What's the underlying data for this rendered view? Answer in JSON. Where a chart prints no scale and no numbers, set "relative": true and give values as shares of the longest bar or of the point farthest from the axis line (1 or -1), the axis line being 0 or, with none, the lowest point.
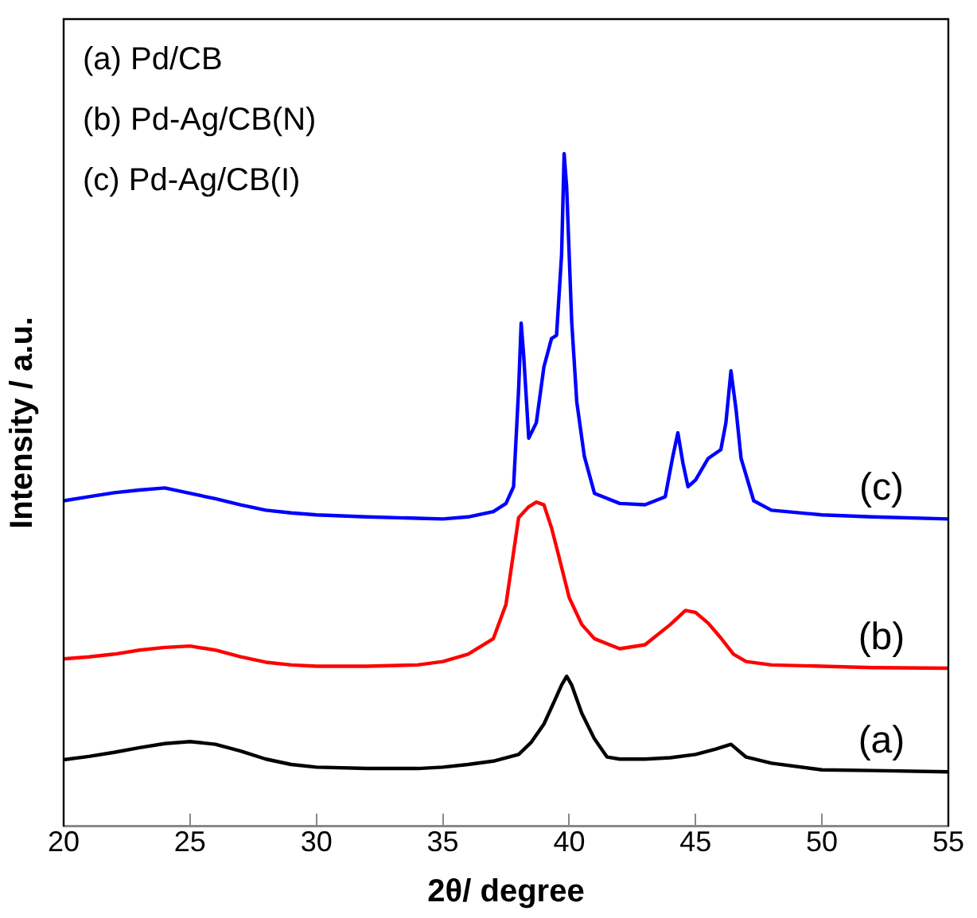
{
  "chart_data": {
    "type": "line",
    "xlabel": "2θ/ degree",
    "ylabel": "Intensity / a.u.",
    "relative": true,
    "xlim": [
      20,
      55
    ],
    "xticks": [
      20,
      25,
      30,
      35,
      40,
      45,
      50,
      55
    ],
    "grid": false,
    "legend": false,
    "marker": "none",
    "line_style": "solid",
    "series": [
      {
        "name": "(a)",
        "color": "#000000",
        "x": [
          20,
          21,
          22,
          23,
          24,
          25,
          26,
          27,
          28,
          29,
          30,
          32,
          34,
          35,
          36,
          37,
          38,
          38.5,
          39,
          39.4,
          39.7,
          39.9,
          40.1,
          40.5,
          41,
          41.5,
          42,
          43,
          44,
          45,
          45.8,
          46.4,
          47,
          48,
          50,
          52,
          55
        ],
        "values": [
          0.099,
          0.104,
          0.11,
          0.117,
          0.123,
          0.126,
          0.122,
          0.112,
          0.1,
          0.092,
          0.088,
          0.086,
          0.086,
          0.088,
          0.092,
          0.097,
          0.107,
          0.125,
          0.152,
          0.185,
          0.21,
          0.223,
          0.21,
          0.168,
          0.13,
          0.103,
          0.1,
          0.1,
          0.102,
          0.107,
          0.115,
          0.122,
          0.103,
          0.094,
          0.084,
          0.083,
          0.081
        ]
      },
      {
        "name": "(b)",
        "color": "#ff0000",
        "x": [
          20,
          21,
          22,
          23,
          24,
          25,
          26,
          27,
          28,
          29,
          30,
          32,
          34,
          35,
          36,
          37,
          37.5,
          38,
          38.4,
          38.7,
          39,
          39.3,
          39.6,
          40,
          40.5,
          41,
          42,
          43,
          44,
          44.6,
          45,
          45.5,
          46,
          46.5,
          47,
          48,
          50,
          52,
          55
        ],
        "values": [
          0.249,
          0.252,
          0.256,
          0.262,
          0.266,
          0.268,
          0.262,
          0.252,
          0.244,
          0.24,
          0.238,
          0.238,
          0.24,
          0.245,
          0.256,
          0.279,
          0.33,
          0.459,
          0.475,
          0.482,
          0.478,
          0.444,
          0.4,
          0.34,
          0.3,
          0.279,
          0.264,
          0.27,
          0.3,
          0.321,
          0.318,
          0.302,
          0.28,
          0.256,
          0.245,
          0.24,
          0.238,
          0.236,
          0.235
        ]
      },
      {
        "name": "(c)",
        "color": "#0000ff",
        "x": [
          20,
          21,
          22,
          23,
          24,
          25,
          26,
          27,
          28,
          29,
          30,
          32,
          34,
          35,
          36,
          37,
          37.5,
          37.8,
          38,
          38.1,
          38.2,
          38.4,
          38.7,
          39,
          39.3,
          39.5,
          39.7,
          39.8,
          39.9,
          40.1,
          40.3,
          40.6,
          41,
          42,
          43,
          43.8,
          44.1,
          44.3,
          44.5,
          44.7,
          45,
          45.5,
          46,
          46.2,
          46.4,
          46.6,
          46.8,
          47.3,
          48,
          50,
          52,
          55
        ],
        "values": [
          0.484,
          0.49,
          0.496,
          0.5,
          0.503,
          0.495,
          0.487,
          0.478,
          0.47,
          0.466,
          0.463,
          0.46,
          0.458,
          0.457,
          0.46,
          0.468,
          0.48,
          0.505,
          0.65,
          0.748,
          0.7,
          0.577,
          0.6,
          0.683,
          0.725,
          0.73,
          0.85,
          1.0,
          0.95,
          0.75,
          0.631,
          0.55,
          0.495,
          0.48,
          0.478,
          0.49,
          0.55,
          0.585,
          0.54,
          0.505,
          0.515,
          0.547,
          0.56,
          0.6,
          0.677,
          0.62,
          0.547,
          0.484,
          0.47,
          0.463,
          0.46,
          0.457
        ]
      }
    ],
    "annotations": [
      "(a) Pd/CB",
      "(b) Pd-Ag/CB(N)",
      "(c) Pd-Ag/CB(I)"
    ]
  }
}
